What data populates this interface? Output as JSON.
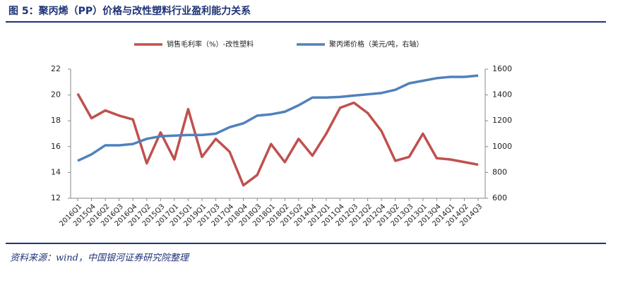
{
  "chart_data": {
    "type": "line",
    "title": "图 5：聚丙烯（PP）价格与改性塑料行业盈利能力关系",
    "source": "资料来源：wind，中国银河证券研究院整理",
    "categories": [
      "2016Q1",
      "2015Q4",
      "2016Q2",
      "2016Q3",
      "2016Q4",
      "2017Q2",
      "2015Q3",
      "2017Q1",
      "2015Q1",
      "2019Q1",
      "2017Q3",
      "2017Q4",
      "2018Q4",
      "2018Q3",
      "2018Q1",
      "2018Q2",
      "2015Q2",
      "2014Q4",
      "2012Q1",
      "2011Q4",
      "2012Q3",
      "2012Q2",
      "2012Q4",
      "2013Q2",
      "2013Q3",
      "2013Q1",
      "2013Q4",
      "2014Q1",
      "2014Q2",
      "2014Q3"
    ],
    "series": [
      {
        "name": "销售毛利率（%）-改性塑料",
        "color": "#c0504d",
        "axis": "y",
        "values": [
          20.1,
          18.2,
          18.8,
          18.4,
          18.1,
          14.7,
          17.1,
          15.0,
          18.9,
          15.2,
          16.6,
          15.6,
          13.0,
          13.8,
          16.2,
          14.8,
          16.6,
          15.3,
          17.0,
          19.0,
          19.4,
          18.6,
          17.2,
          14.9,
          15.2,
          17.0,
          15.1,
          15.0,
          14.8,
          14.6
        ]
      },
      {
        "name": "聚丙烯价格（美元/吨，右轴）",
        "color": "#4f81bd",
        "axis": "y2",
        "values": [
          890,
          940,
          1010,
          1010,
          1020,
          1060,
          1080,
          1085,
          1090,
          1090,
          1100,
          1150,
          1180,
          1240,
          1250,
          1270,
          1320,
          1380,
          1380,
          1385,
          1395,
          1405,
          1415,
          1440,
          1490,
          1510,
          1530,
          1540,
          1540,
          1550
        ]
      }
    ],
    "ylim": [
      12,
      22
    ],
    "yticks": [
      12,
      14,
      16,
      18,
      20,
      22
    ],
    "y2lim": [
      600,
      1600
    ],
    "y2ticks": [
      600,
      800,
      1000,
      1200,
      1400,
      1600
    ],
    "legend": "top"
  }
}
